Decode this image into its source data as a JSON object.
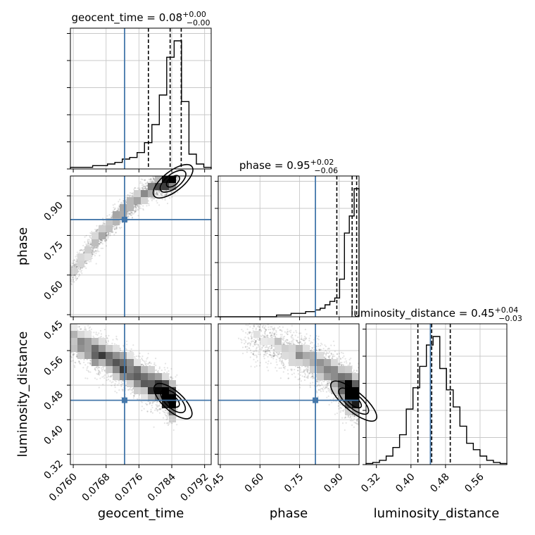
{
  "chart_data": {
    "type": "corner",
    "parameters": [
      "geocent_time",
      "phase",
      "luminosity_distance"
    ],
    "xlabels": [
      "geocent_time",
      "phase",
      "luminosity_distance"
    ],
    "ylabels": [
      "",
      "phase",
      "luminosity_distance"
    ],
    "truth": {
      "geocent_time": 0.07725,
      "phase": 0.81,
      "luminosity_distance": 0.445
    },
    "truth_color": "#4477aa",
    "ranges": {
      "geocent_time": [
        0.07593,
        0.07936
      ],
      "phase": [
        0.442,
        0.975
      ],
      "luminosity_distance": [
        0.296,
        0.622
      ]
    },
    "ticks": {
      "geocent_time": [
        0.076,
        0.0768,
        0.0776,
        0.0784,
        0.0792
      ],
      "phase": [
        0.45,
        0.6,
        0.75,
        0.9
      ],
      "luminosity_distance": [
        0.32,
        0.4,
        0.48,
        0.56
      ]
    },
    "tick_labels": {
      "geocent_time": [
        "0.0760",
        "0.0768",
        "0.0776",
        "0.0784",
        "0.0792"
      ],
      "phase": [
        "0.45",
        "0.60",
        "0.75",
        "0.90"
      ],
      "luminosity_distance": [
        "0.32",
        "0.40",
        "0.48",
        "0.56"
      ]
    },
    "titles": [
      {
        "param": "geocent_time",
        "label": "geocent_time = 0.08",
        "plus": "+0.00",
        "minus": "−0.00"
      },
      {
        "param": "phase",
        "label": "phase = 0.95",
        "plus": "+0.02",
        "minus": "−0.06"
      },
      {
        "param": "luminosity_distance",
        "label": "luminosity_distance = 0.45",
        "plus": "+0.04",
        "minus": "−0.03"
      }
    ],
    "quantiles": {
      "geocent_time": [
        0.07783,
        0.07836,
        0.07863
      ],
      "phase": [
        0.891,
        0.949,
        0.966
      ],
      "luminosity_distance": [
        0.416,
        0.448,
        0.491
      ]
    },
    "histograms": {
      "geocent_time": [
        1,
        1,
        1,
        2,
        2,
        3,
        4,
        6,
        7,
        10,
        16,
        27,
        45,
        68,
        78,
        41,
        9,
        3,
        1
      ],
      "phase": [
        0,
        0,
        0,
        0,
        0,
        0,
        0,
        0,
        0,
        0,
        0,
        0,
        1,
        1,
        1,
        2,
        2,
        2,
        3,
        3,
        4,
        5,
        7,
        9,
        11,
        22,
        49,
        59,
        75
      ],
      "luminosity_distance": [
        0.5,
        1,
        2,
        4,
        8,
        14,
        26,
        36,
        46,
        56,
        60,
        45,
        35,
        27,
        18,
        10,
        7,
        4,
        2,
        1,
        0.5
      ]
    },
    "grid": true
  }
}
